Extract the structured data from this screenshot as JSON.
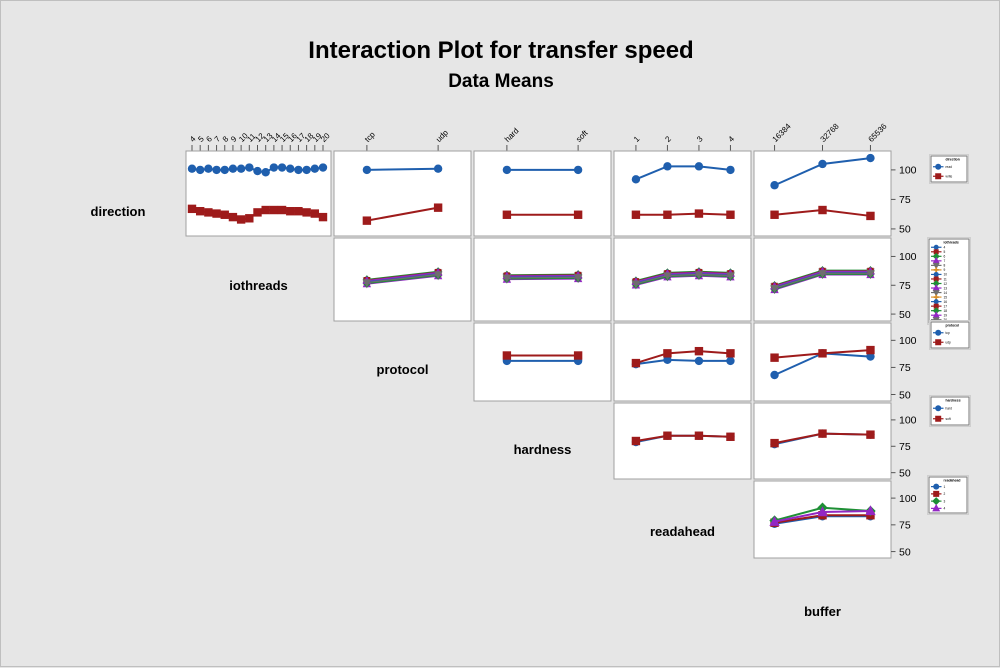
{
  "title": "Interaction Plot for transfer speed",
  "subtitle": "Data Means",
  "palette": [
    "#1F5FAE",
    "#9E1B1B",
    "#1E8F35",
    "#9327C4",
    "#6E6E6E",
    "#D78F2A"
  ],
  "markers": [
    "circle",
    "square",
    "diamond",
    "triangle",
    "nabla",
    "plus"
  ],
  "colors": {
    "background": "#e6e6e6",
    "cell_background": "#ffffff",
    "cell_border": "#a0a0a0",
    "tick_text": "#000000",
    "legend_border": "#7a7a7a"
  },
  "factors": [
    {
      "name": "direction",
      "levels": [
        "read",
        "write"
      ]
    },
    {
      "name": "iothreads",
      "levels": [
        "4",
        "5",
        "6",
        "7",
        "8",
        "9",
        "10",
        "11",
        "12",
        "13",
        "14",
        "15",
        "16",
        "17",
        "18",
        "19",
        "20"
      ]
    },
    {
      "name": "protocol",
      "levels": [
        "tcp",
        "udp"
      ]
    },
    {
      "name": "hardness",
      "levels": [
        "hard",
        "soft"
      ]
    },
    {
      "name": "readahead",
      "levels": [
        "1",
        "2",
        "3",
        "4"
      ]
    },
    {
      "name": "buffer",
      "levels": [
        "16384",
        "32768",
        "65536"
      ]
    }
  ],
  "axis": {
    "tick_values": [
      100,
      75,
      50
    ],
    "value_range": [
      44,
      116
    ]
  },
  "chart_data": {
    "type": "line",
    "title": "Interaction Plot for transfer speed",
    "subtitle": "Data Means",
    "layout": "lower-left labels, upper-triangle matrix; row factor = colored series, column factor = x categories",
    "ylim": [
      44,
      116
    ],
    "yticks": [
      100,
      75,
      50
    ],
    "bundle_offsets": [
      0,
      0.8,
      -0.8,
      1.6,
      -1.6,
      1.2,
      0.4,
      -1.2,
      2,
      -2,
      0.8,
      -0.4,
      0.2,
      1.4,
      -1.4,
      1,
      -0.6
    ],
    "cells": [
      {
        "row": 0,
        "col": 0,
        "series": [
          {
            "level": "read",
            "ci": 0,
            "values": [
              101,
              100,
              101,
              100,
              100,
              101,
              101,
              102,
              99,
              98,
              102,
              102,
              101,
              100,
              100,
              101,
              102
            ]
          },
          {
            "level": "write",
            "ci": 1,
            "values": [
              67,
              65,
              64,
              63,
              62,
              60,
              58,
              59,
              64,
              66,
              66,
              66,
              65,
              65,
              64,
              63,
              60
            ]
          }
        ]
      },
      {
        "row": 0,
        "col": 1,
        "series": [
          {
            "level": "read",
            "ci": 0,
            "values": [
              100,
              101
            ]
          },
          {
            "level": "write",
            "ci": 1,
            "values": [
              57,
              68
            ]
          }
        ]
      },
      {
        "row": 0,
        "col": 2,
        "series": [
          {
            "level": "read",
            "ci": 0,
            "values": [
              100,
              100
            ]
          },
          {
            "level": "write",
            "ci": 1,
            "values": [
              62,
              62
            ]
          }
        ]
      },
      {
        "row": 0,
        "col": 3,
        "series": [
          {
            "level": "read",
            "ci": 0,
            "values": [
              92,
              103,
              103,
              100
            ]
          },
          {
            "level": "write",
            "ci": 1,
            "values": [
              62,
              62,
              63,
              62
            ]
          }
        ]
      },
      {
        "row": 0,
        "col": 4,
        "series": [
          {
            "level": "read",
            "ci": 0,
            "values": [
              87,
              105,
              110
            ]
          },
          {
            "level": "write",
            "ci": 1,
            "values": [
              62,
              66,
              61
            ]
          }
        ]
      },
      {
        "row": 1,
        "col": 1,
        "bundle": {
          "base": [
            78,
            85
          ]
        }
      },
      {
        "row": 1,
        "col": 2,
        "bundle": {
          "base": [
            82,
            82.5
          ]
        }
      },
      {
        "row": 1,
        "col": 3,
        "bundle": {
          "base": [
            77,
            84,
            85,
            84
          ]
        }
      },
      {
        "row": 1,
        "col": 4,
        "bundle": {
          "base": [
            73,
            86,
            86
          ]
        }
      },
      {
        "row": 2,
        "col": 2,
        "series": [
          {
            "level": "tcp",
            "ci": 0,
            "values": [
              81,
              81
            ]
          },
          {
            "level": "udp",
            "ci": 1,
            "values": [
              86,
              86
            ]
          }
        ]
      },
      {
        "row": 2,
        "col": 3,
        "series": [
          {
            "level": "tcp",
            "ci": 0,
            "values": [
              78,
              82,
              81,
              81
            ]
          },
          {
            "level": "udp",
            "ci": 1,
            "values": [
              79,
              88,
              90,
              88
            ]
          }
        ]
      },
      {
        "row": 2,
        "col": 4,
        "series": [
          {
            "level": "tcp",
            "ci": 0,
            "values": [
              68,
              88,
              85
            ]
          },
          {
            "level": "udp",
            "ci": 1,
            "values": [
              84,
              88,
              91
            ]
          }
        ]
      },
      {
        "row": 3,
        "col": 3,
        "series": [
          {
            "level": "hard",
            "ci": 0,
            "values": [
              79,
              85,
              85,
              84
            ]
          },
          {
            "level": "soft",
            "ci": 1,
            "values": [
              80,
              85,
              85,
              84
            ]
          }
        ]
      },
      {
        "row": 3,
        "col": 4,
        "series": [
          {
            "level": "hard",
            "ci": 0,
            "values": [
              77,
              87,
              86
            ]
          },
          {
            "level": "soft",
            "ci": 1,
            "values": [
              78,
              87,
              86
            ]
          }
        ]
      },
      {
        "row": 4,
        "col": 4,
        "series": [
          {
            "level": "1",
            "ci": 0,
            "values": [
              76,
              83,
              83
            ]
          },
          {
            "level": "2",
            "ci": 1,
            "values": [
              77,
              84,
              84
            ]
          },
          {
            "level": "3",
            "ci": 2,
            "values": [
              79,
              91,
              88
            ]
          },
          {
            "level": "4",
            "ci": 3,
            "values": [
              78,
              87,
              88
            ]
          }
        ]
      }
    ]
  },
  "legends": [
    {
      "factor": "direction"
    },
    {
      "factor": "iothreads"
    },
    {
      "factor": "protocol"
    },
    {
      "factor": "hardness"
    },
    {
      "factor": "readahead"
    }
  ]
}
